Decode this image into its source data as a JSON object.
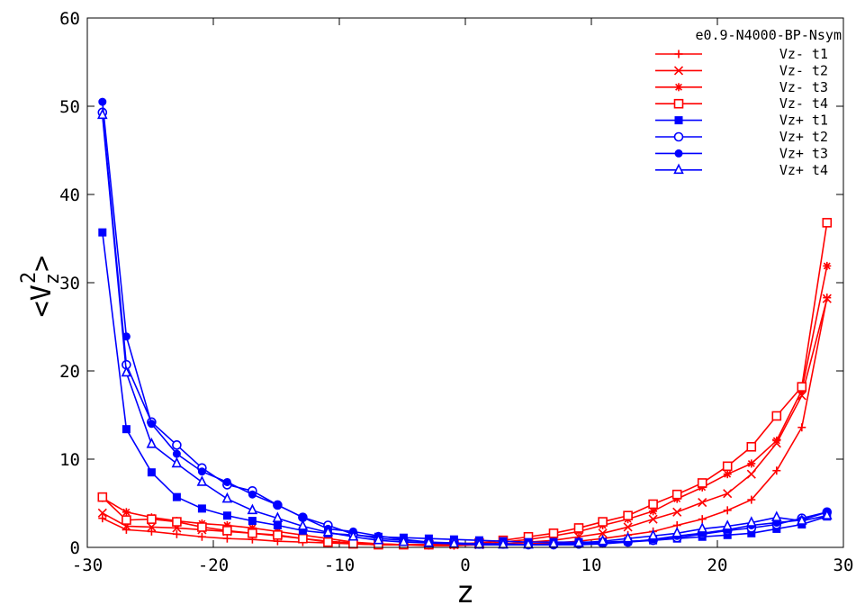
{
  "chart_data": {
    "type": "line",
    "legend_title": "e0.9-N4000-BP-Nsym",
    "legend_position": "top-right",
    "xlabel": "z",
    "ylabel": {
      "base": "<V",
      "sub": "z",
      "sup": "2",
      "close": ">"
    },
    "xlim": [
      -30,
      30
    ],
    "ylim": [
      0,
      60
    ],
    "xticks": [
      -30,
      -20,
      -10,
      0,
      10,
      20,
      30
    ],
    "yticks": [
      0,
      10,
      20,
      30,
      40,
      50,
      60
    ],
    "x": [
      -28.8,
      -26.9,
      -24.9,
      -22.9,
      -20.9,
      -18.9,
      -16.9,
      -14.9,
      -12.9,
      -10.9,
      -8.9,
      -6.9,
      -4.9,
      -2.9,
      -0.9,
      1.1,
      3.0,
      5.0,
      7.0,
      9.0,
      10.9,
      12.9,
      14.9,
      16.8,
      18.8,
      20.8,
      22.7,
      24.7,
      26.7,
      28.7
    ],
    "series": [
      {
        "name": "Vz- t1",
        "color": "#ff0000",
        "marker": "plus",
        "values": [
          3.3,
          2.0,
          1.8,
          1.5,
          1.2,
          1.0,
          0.9,
          0.7,
          0.6,
          0.5,
          0.4,
          0.3,
          0.3,
          0.2,
          0.2,
          0.3,
          0.3,
          0.4,
          0.5,
          0.7,
          1.0,
          1.4,
          1.8,
          2.5,
          3.2,
          4.2,
          5.4,
          8.7,
          13.6,
          28.3
        ]
      },
      {
        "name": "Vz- t2",
        "color": "#ff0000",
        "marker": "cross",
        "values": [
          3.9,
          2.4,
          2.3,
          2.2,
          2.0,
          1.8,
          1.6,
          1.3,
          1.0,
          0.7,
          0.5,
          0.4,
          0.3,
          0.3,
          0.3,
          0.3,
          0.4,
          0.6,
          0.8,
          1.2,
          1.6,
          2.3,
          3.2,
          4.0,
          5.1,
          6.1,
          8.3,
          11.8,
          17.2,
          28.2
        ]
      },
      {
        "name": "Vz- t3",
        "color": "#ff0000",
        "marker": "star",
        "values": [
          5.6,
          4.0,
          3.4,
          3.0,
          2.7,
          2.5,
          2.2,
          1.8,
          1.4,
          1.0,
          0.6,
          0.4,
          0.3,
          0.3,
          0.3,
          0.4,
          0.6,
          0.9,
          1.3,
          1.8,
          2.5,
          3.2,
          4.1,
          5.5,
          6.8,
          8.3,
          9.5,
          12.1,
          17.8,
          31.9
        ]
      },
      {
        "name": "Vz- t4",
        "color": "#ff0000",
        "marker": "square-open",
        "values": [
          5.7,
          3.1,
          3.2,
          2.9,
          2.3,
          1.9,
          1.6,
          1.4,
          1.0,
          0.6,
          0.4,
          0.3,
          0.3,
          0.3,
          0.4,
          0.5,
          0.8,
          1.2,
          1.6,
          2.2,
          2.9,
          3.6,
          4.9,
          6.0,
          7.3,
          9.2,
          11.4,
          14.9,
          18.2,
          36.8
        ]
      },
      {
        "name": "Vz+ t1",
        "color": "#0000ff",
        "marker": "square-filled",
        "values": [
          35.7,
          13.4,
          8.5,
          5.7,
          4.4,
          3.6,
          3.0,
          2.5,
          1.9,
          1.6,
          1.4,
          1.2,
          1.1,
          1.0,
          0.9,
          0.8,
          0.7,
          0.6,
          0.6,
          0.6,
          0.6,
          0.7,
          0.8,
          1.0,
          1.2,
          1.4,
          1.6,
          2.1,
          2.6,
          3.5
        ]
      },
      {
        "name": "Vz+ t2",
        "color": "#0000ff",
        "marker": "circle-open",
        "values": [
          49.3,
          20.7,
          14.2,
          11.6,
          9.0,
          7.1,
          6.4,
          4.8,
          3.4,
          2.5,
          1.5,
          1.0,
          0.8,
          0.6,
          0.5,
          0.4,
          0.4,
          0.3,
          0.3,
          0.4,
          0.5,
          0.6,
          0.8,
          1.1,
          1.5,
          1.9,
          2.2,
          2.6,
          3.3,
          4.0
        ]
      },
      {
        "name": "Vz+ t3",
        "color": "#0000ff",
        "marker": "circle-filled",
        "values": [
          50.5,
          23.9,
          14.0,
          10.6,
          8.6,
          7.4,
          6.0,
          4.8,
          3.4,
          2.1,
          1.8,
          1.3,
          0.9,
          0.6,
          0.4,
          0.3,
          0.3,
          0.3,
          0.3,
          0.3,
          0.4,
          0.6,
          0.9,
          1.3,
          1.6,
          2.0,
          2.5,
          2.8,
          3.1,
          4.0
        ]
      },
      {
        "name": "Vz+ t4",
        "color": "#0000ff",
        "marker": "triangle-open",
        "values": [
          49.0,
          19.8,
          11.7,
          9.5,
          7.4,
          5.5,
          4.2,
          3.3,
          2.4,
          1.7,
          1.2,
          0.8,
          0.6,
          0.5,
          0.4,
          0.3,
          0.3,
          0.3,
          0.4,
          0.5,
          0.7,
          1.0,
          1.3,
          1.6,
          2.1,
          2.4,
          2.8,
          3.4,
          3.0,
          3.6
        ]
      }
    ]
  }
}
